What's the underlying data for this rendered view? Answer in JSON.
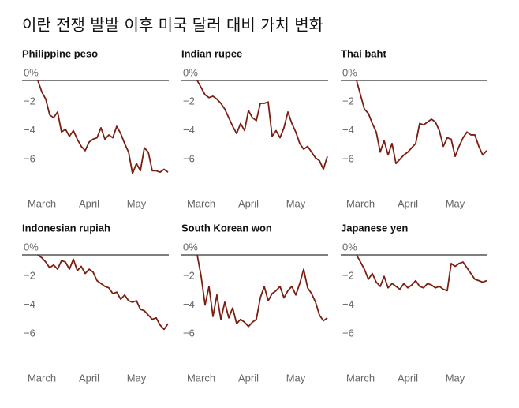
{
  "title": "이란 전쟁 발발 이후 미국 달러 대비 가치 변화",
  "chart_data": [
    {
      "type": "line",
      "title": "Philippine peso",
      "color": "#7a1f12",
      "categories": [
        null,
        "March",
        null,
        null,
        null,
        null,
        null,
        null,
        null,
        null,
        null,
        null,
        null,
        "April",
        null,
        null,
        null,
        null,
        null,
        null,
        null,
        null,
        null,
        null,
        null,
        "May",
        null,
        null,
        null,
        null,
        null,
        null,
        null,
        null
      ],
      "values": [
        0,
        -0.8,
        -1.3,
        -2.4,
        -2.6,
        -2.2,
        -3.6,
        -3.4,
        -3.9,
        -3.5,
        -4.1,
        -4.6,
        -4.9,
        -4.3,
        -4.1,
        -4.0,
        -3.3,
        -4.1,
        -3.8,
        -4.0,
        -3.2,
        -3.7,
        -4.4,
        -5.0,
        -6.5,
        -5.8,
        -6.3,
        -4.7,
        -5.0,
        -6.3,
        -6.3,
        -6.4,
        -6.2,
        -6.4
      ],
      "ylim": [
        -7,
        0
      ],
      "yticks": [
        {
          "value": 0,
          "label": "0%"
        },
        {
          "value": -2,
          "label": "−2"
        },
        {
          "value": -4,
          "label": "−4"
        },
        {
          "value": -6,
          "label": "−6"
        }
      ]
    },
    {
      "type": "line",
      "title": "Indian rupee",
      "color": "#7a1f12",
      "categories": [
        null,
        "March",
        null,
        null,
        null,
        null,
        null,
        null,
        null,
        null,
        null,
        null,
        null,
        "April",
        null,
        null,
        null,
        null,
        null,
        null,
        null,
        null,
        null,
        null,
        null,
        "May",
        null,
        null,
        null,
        null,
        null,
        null,
        null,
        null
      ],
      "values": [
        0,
        -0.5,
        -1.0,
        -1.2,
        -1.1,
        -1.3,
        -1.6,
        -2.0,
        -2.6,
        -3.2,
        -3.7,
        -3.0,
        -3.5,
        -2.1,
        -2.6,
        -2.8,
        -1.6,
        -1.6,
        -1.5,
        -3.9,
        -3.5,
        -4.0,
        -3.3,
        -2.2,
        -3.0,
        -3.6,
        -4.4,
        -4.8,
        -4.6,
        -5.0,
        -5.4,
        -5.6,
        -6.2,
        -5.3
      ],
      "ylim": [
        -7,
        0
      ],
      "yticks": [
        {
          "value": 0,
          "label": "0%"
        },
        {
          "value": -2,
          "label": "−2"
        },
        {
          "value": -4,
          "label": "−4"
        },
        {
          "value": -6,
          "label": "−6"
        }
      ]
    },
    {
      "type": "line",
      "title": "Thai baht",
      "color": "#7a1f12",
      "categories": [
        null,
        "March",
        null,
        null,
        null,
        null,
        null,
        null,
        null,
        null,
        null,
        null,
        null,
        "April",
        null,
        null,
        null,
        null,
        null,
        null,
        null,
        null,
        null,
        null,
        null,
        "May",
        null,
        null,
        null,
        null,
        null,
        null,
        null,
        null
      ],
      "values": [
        0,
        -1.0,
        -2.0,
        -2.3,
        -3.0,
        -3.6,
        -5.0,
        -4.2,
        -5.2,
        -4.4,
        -5.8,
        -5.5,
        -5.2,
        -5.0,
        -4.7,
        -4.4,
        -3.0,
        -3.1,
        -2.9,
        -2.7,
        -2.9,
        -3.5,
        -4.6,
        -4.0,
        -4.1,
        -5.3,
        -4.6,
        -4.0,
        -3.6,
        -3.8,
        -3.8,
        -4.6,
        -5.2,
        -4.9
      ],
      "ylim": [
        -7,
        0
      ],
      "yticks": [
        {
          "value": 0,
          "label": "0%"
        },
        {
          "value": -2,
          "label": "−2"
        },
        {
          "value": -4,
          "label": "−4"
        },
        {
          "value": -6,
          "label": "−6"
        }
      ]
    },
    {
      "type": "line",
      "title": "Indonesian rupiah",
      "color": "#7a1f12",
      "categories": [
        null,
        "March",
        null,
        null,
        null,
        null,
        null,
        null,
        null,
        null,
        null,
        null,
        null,
        "April",
        null,
        null,
        null,
        null,
        null,
        null,
        null,
        null,
        null,
        null,
        null,
        "May",
        null,
        null,
        null,
        null,
        null,
        null,
        null,
        null
      ],
      "values": [
        0,
        -0.2,
        -0.5,
        -0.9,
        -0.7,
        -1.0,
        -0.4,
        -0.5,
        -1.0,
        -0.3,
        -1.1,
        -0.8,
        -1.3,
        -1.0,
        -1.2,
        -1.8,
        -2.0,
        -2.2,
        -2.3,
        -2.7,
        -2.6,
        -3.1,
        -2.8,
        -3.2,
        -3.3,
        -3.2,
        -3.8,
        -3.9,
        -4.2,
        -4.5,
        -4.4,
        -4.9,
        -5.2,
        -4.8
      ],
      "ylim": [
        -7,
        0
      ],
      "yticks": [
        {
          "value": 0,
          "label": "0%"
        },
        {
          "value": -2,
          "label": "−2"
        },
        {
          "value": -4,
          "label": "−4"
        },
        {
          "value": -6,
          "label": "−6"
        }
      ]
    },
    {
      "type": "line",
      "title": "South Korean won",
      "color": "#7a1f12",
      "categories": [
        null,
        "March",
        null,
        null,
        null,
        null,
        null,
        null,
        null,
        null,
        null,
        null,
        null,
        "April",
        null,
        null,
        null,
        null,
        null,
        null,
        null,
        null,
        null,
        null,
        null,
        "May",
        null,
        null,
        null,
        null,
        null,
        null,
        null,
        null
      ],
      "values": [
        0,
        -1.5,
        -3.5,
        -2.2,
        -4.3,
        -2.8,
        -4.5,
        -3.3,
        -4.4,
        -3.7,
        -4.8,
        -4.5,
        -4.7,
        -5.0,
        -4.7,
        -4.5,
        -3.0,
        -2.2,
        -3.2,
        -2.7,
        -2.5,
        -2.2,
        -3.0,
        -2.5,
        -2.2,
        -2.8,
        -2.0,
        -1.0,
        -2.3,
        -2.7,
        -3.3,
        -4.2,
        -4.6,
        -4.4
      ],
      "ylim": [
        -7,
        0
      ],
      "yticks": [
        {
          "value": 0,
          "label": "0%"
        },
        {
          "value": -2,
          "label": "−2"
        },
        {
          "value": -4,
          "label": "−4"
        },
        {
          "value": -6,
          "label": "−6"
        }
      ]
    },
    {
      "type": "line",
      "title": "Japanese yen",
      "color": "#7a1f12",
      "categories": [
        null,
        "March",
        null,
        null,
        null,
        null,
        null,
        null,
        null,
        null,
        null,
        null,
        null,
        "April",
        null,
        null,
        null,
        null,
        null,
        null,
        null,
        null,
        null,
        null,
        null,
        "May",
        null,
        null,
        null,
        null,
        null,
        null,
        null,
        null
      ],
      "values": [
        0,
        -0.5,
        -1.0,
        -1.7,
        -1.3,
        -1.9,
        -2.2,
        -1.5,
        -2.3,
        -2.0,
        -2.2,
        -2.4,
        -2.0,
        -2.3,
        -2.1,
        -1.8,
        -2.2,
        -2.3,
        -2.0,
        -2.1,
        -2.3,
        -2.2,
        -2.4,
        -2.5,
        -0.6,
        -0.8,
        -0.6,
        -0.5,
        -0.9,
        -1.3,
        -1.7,
        -1.8,
        -1.9,
        -1.8
      ],
      "ylim": [
        -7,
        0
      ],
      "yticks": [
        {
          "value": 0,
          "label": "0%"
        },
        {
          "value": -2,
          "label": "−2"
        },
        {
          "value": -4,
          "label": "−4"
        },
        {
          "value": -6,
          "label": "−6"
        }
      ]
    }
  ]
}
